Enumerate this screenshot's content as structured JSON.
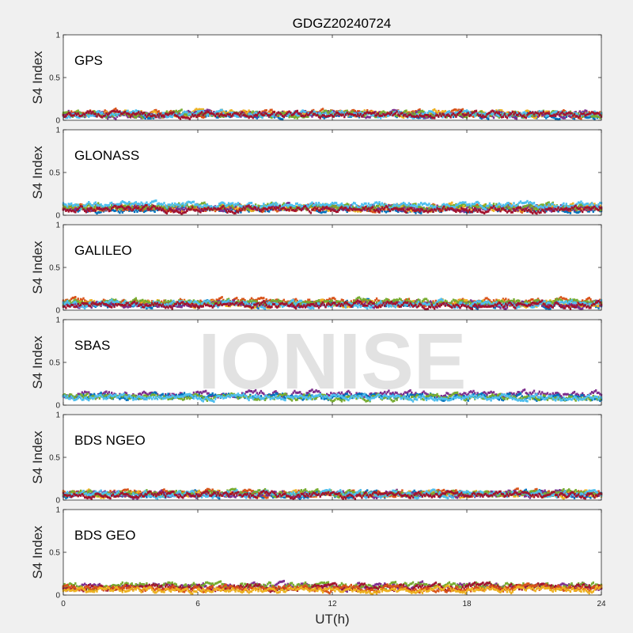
{
  "chart_data": {
    "type": "scatter",
    "title": "GDGZ20240724",
    "xlabel": "UT(h)",
    "ylabel": "S4 Index",
    "xlim": [
      0,
      24
    ],
    "ylim": [
      0,
      1
    ],
    "xticks": [
      "0",
      "6",
      "12",
      "18",
      "24"
    ],
    "yticks": [
      "0",
      "0.5",
      "1"
    ],
    "watermark": "IONISE",
    "colors": [
      "#0072bd",
      "#d95319",
      "#edb120",
      "#7e2f8e",
      "#77ac30",
      "#4dbeee",
      "#a2142f"
    ],
    "panels": [
      {
        "label": "GPS",
        "series": [
          {
            "color": "#0072bd",
            "level": 0.06
          },
          {
            "color": "#d95319",
            "level": 0.08
          },
          {
            "color": "#edb120",
            "level": 0.08
          },
          {
            "color": "#7e2f8e",
            "level": 0.07
          },
          {
            "color": "#77ac30",
            "level": 0.07
          },
          {
            "color": "#4dbeee",
            "level": 0.07
          },
          {
            "color": "#a2142f",
            "level": 0.06
          }
        ]
      },
      {
        "label": "GLONASS",
        "series": [
          {
            "color": "#0072bd",
            "level": 0.07
          },
          {
            "color": "#d95319",
            "level": 0.08
          },
          {
            "color": "#edb120",
            "level": 0.09
          },
          {
            "color": "#7e2f8e",
            "level": 0.09
          },
          {
            "color": "#77ac30",
            "level": 0.1
          },
          {
            "color": "#4dbeee",
            "level": 0.12
          },
          {
            "color": "#a2142f",
            "level": 0.07
          }
        ]
      },
      {
        "label": "GALILEO",
        "series": [
          {
            "color": "#0072bd",
            "level": 0.07
          },
          {
            "color": "#d95319",
            "level": 0.1
          },
          {
            "color": "#edb120",
            "level": 0.08
          },
          {
            "color": "#7e2f8e",
            "level": 0.07
          },
          {
            "color": "#77ac30",
            "level": 0.09
          },
          {
            "color": "#4dbeee",
            "level": 0.07
          },
          {
            "color": "#a2142f",
            "level": 0.06
          }
        ]
      },
      {
        "label": "SBAS",
        "series": [
          {
            "color": "#7e2f8e",
            "level": 0.13
          },
          {
            "color": "#0072bd",
            "level": 0.1
          },
          {
            "color": "#77ac30",
            "level": 0.09
          },
          {
            "color": "#4dbeee",
            "level": 0.09
          }
        ]
      },
      {
        "label": "BDS NGEO",
        "series": [
          {
            "color": "#0072bd",
            "level": 0.07
          },
          {
            "color": "#d95319",
            "level": 0.08
          },
          {
            "color": "#edb120",
            "level": 0.07
          },
          {
            "color": "#7e2f8e",
            "level": 0.07
          },
          {
            "color": "#77ac30",
            "level": 0.08
          },
          {
            "color": "#4dbeee",
            "level": 0.07
          },
          {
            "color": "#a2142f",
            "level": 0.06
          }
        ]
      },
      {
        "label": "BDS GEO",
        "series": [
          {
            "color": "#7e2f8e",
            "level": 0.1
          },
          {
            "color": "#77ac30",
            "level": 0.11
          },
          {
            "color": "#a2142f",
            "level": 0.09
          },
          {
            "color": "#d95319",
            "level": 0.08
          },
          {
            "color": "#edb120",
            "level": 0.06
          }
        ]
      }
    ]
  }
}
